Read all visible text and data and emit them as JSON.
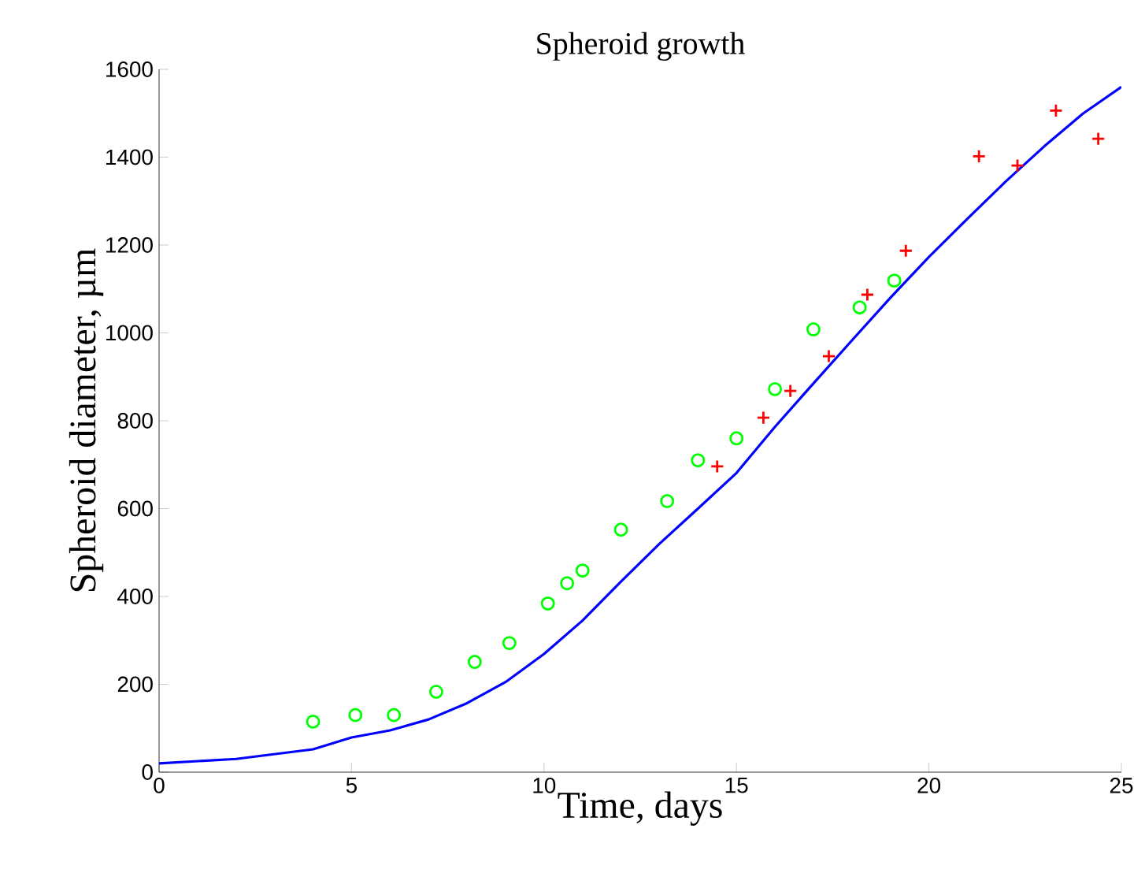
{
  "chart_data": {
    "type": "scatter",
    "title": "Spheroid growth",
    "xlabel": "Time, days",
    "ylabel": "Spheroid diameter, µm",
    "xlim": [
      0,
      25
    ],
    "ylim": [
      0,
      1600
    ],
    "xticks": [
      0,
      5,
      10,
      15,
      20,
      25
    ],
    "yticks": [
      0,
      200,
      400,
      600,
      800,
      1000,
      1200,
      1400,
      1600
    ],
    "grid": false,
    "series": [
      {
        "type": "line",
        "color": "#0000ff",
        "marker": "none",
        "line_style": "solid",
        "x": [
          0,
          2,
          4,
          5,
          6,
          7,
          8,
          9,
          10,
          11,
          12,
          13,
          14,
          15,
          16,
          17,
          18,
          19,
          20,
          21,
          22,
          23,
          24,
          25
        ],
        "values": [
          20,
          30,
          52,
          79,
          95,
          120,
          157,
          205,
          269,
          345,
          434,
          520,
          600,
          681,
          786,
          885,
          983,
          1080,
          1173,
          1260,
          1345,
          1425,
          1499,
          1560
        ]
      },
      {
        "color": "#00ff00",
        "marker": "circle",
        "x": [
          4.0,
          5.1,
          6.1,
          7.2,
          8.2,
          9.1,
          10.1,
          10.6,
          11.0,
          12.0,
          13.2,
          14.0,
          15.0,
          16.0,
          17.0,
          18.2,
          19.1
        ],
        "values": [
          115,
          130,
          130,
          183,
          251,
          294,
          384,
          430,
          459,
          552,
          617,
          710,
          760,
          872,
          1008,
          1058,
          1119
        ]
      },
      {
        "color": "#ff0000",
        "marker": "cross",
        "x": [
          14.5,
          15.7,
          16.4,
          17.4,
          18.4,
          19.4,
          21.3,
          22.3,
          23.3,
          24.4
        ],
        "values": [
          696,
          807,
          868,
          947,
          1087,
          1187,
          1402,
          1381,
          1506,
          1442
        ]
      }
    ]
  }
}
